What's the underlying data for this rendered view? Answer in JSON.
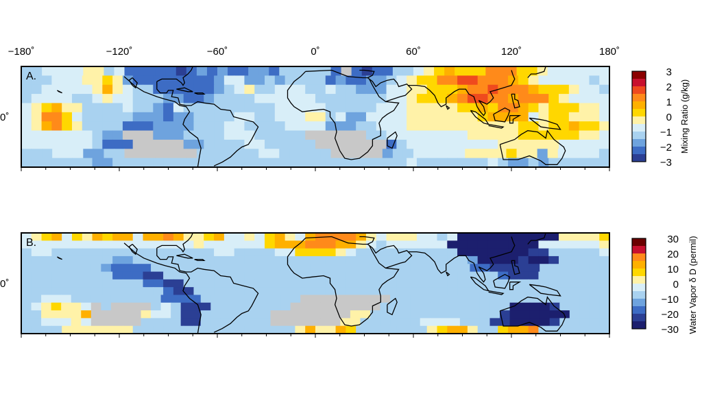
{
  "longitude_ticks": [
    "−180˚",
    "−120˚",
    "−60˚",
    "0˚",
    "60˚",
    "120˚",
    "180˚"
  ],
  "latitude_label": "0˚",
  "panels": [
    {
      "id": "A",
      "label": "A.",
      "colorbar": {
        "title": "Mixing Ratio (g/kg)",
        "ticks": [
          "3",
          "2",
          "1",
          "0",
          "−1",
          "−2",
          "−3"
        ],
        "colors": [
          "#2b3f94",
          "#3d6cc4",
          "#6ea3de",
          "#a9d2f0",
          "#d8eef8",
          "#fff2a8",
          "#ffd700",
          "#ffb000",
          "#ff8a1a",
          "#ef4a1e",
          "#c8102e",
          "#8b0000"
        ]
      },
      "chart_data": {
        "type": "heatmap",
        "title": "",
        "xlabel": "",
        "ylabel": "",
        "xlim": [
          -180,
          180
        ],
        "xticks": [
          -180,
          -120,
          -60,
          0,
          60,
          120,
          180
        ],
        "ylim": [
          -3,
          3
        ],
        "units": "g/kg",
        "grid_spacing_deg": 7.5,
        "no_data_color": "#c8c8c8",
        "rows": [
          "3344445534111110121211221333331x1011334567666888665444444",
          "3334445565211111111244223233331211223456688998887654444434",
          "3344444575433111111234533444334332224455666788988876665443",
          "3444433454433322112333344444433333334456667899887888654444",
          "4567553333433214333333333444443333344455555667688765666554",
          "4588643333322212233334433444553422444455555556777745665554",
          "4578653333111222233344333344442223344455555555555665667665",
          "4444444322xxx222333344433333xxxxxx334444444455555666666554",
          "44444443111xxxxx2233334433333xxxxxxx1344444444455555544444",
          "3334442233xxxxxxx3333334433333xxxxx2334444455556552544443",
          "3333333223333333333333333333333333333343333333432232333333"
        ]
      }
    },
    {
      "id": "B",
      "label": "B.",
      "colorbar": {
        "title": "Water Vapor δ D (permil)",
        "ticks": [
          "30",
          "20",
          "10",
          "0",
          "−10",
          "−20",
          "−30"
        ],
        "colors": [
          "#1c1f6e",
          "#2b3f94",
          "#3d6cc4",
          "#6ea3de",
          "#a9d2f0",
          "#d8eef8",
          "#fff2a8",
          "#ffd700",
          "#ffb000",
          "#ff8a1a",
          "#c8102e",
          "#6b0000"
        ]
      },
      "chart_data": {
        "type": "heatmap",
        "title": "",
        "xlabel": "",
        "ylabel": "",
        "xlim": [
          -180,
          180
        ],
        "xticks": [
          -180,
          -120,
          -60,
          0,
          60,
          120,
          180
        ],
        "ylim": [
          -30,
          30
        ],
        "units": "permil",
        "grid_spacing_deg": 7.5,
        "no_data_color": "#c8c8c8",
        "rows": [
          "5678576878858898667855657865899998656665545000000000066667",
          "5555555555555555565555557888999886545555550000000005555556",
          "4554444444444444444554444557777654444444444000000011444445",
          "4444444443344444444444444444444444444444444430000100144444",
          "44444444322224444444444444444444444444444444422111114444444",
          "4444444442221144444444444444444444444444444444421114444444",
          "4444444444442211444444444444444444444444444444444444444444",
          "4444444444444421144444444444444444444444444444444444444444",
          "4455544444444422224444444444xxxxxxxxx4444444444444444444444",
          "4567665x4xxxx45411144444444xxxxxxxxx44444444444440000144444",
          "4466668xxxxx6554114444444xxxxxxxx66444444444444410000004444",
          "4455565xxxxx4444114444444xxxxxxx664444445555444110000144444",
          "4444666666644444444444444446866874444444678864478894444444"
        ]
      }
    }
  ]
}
